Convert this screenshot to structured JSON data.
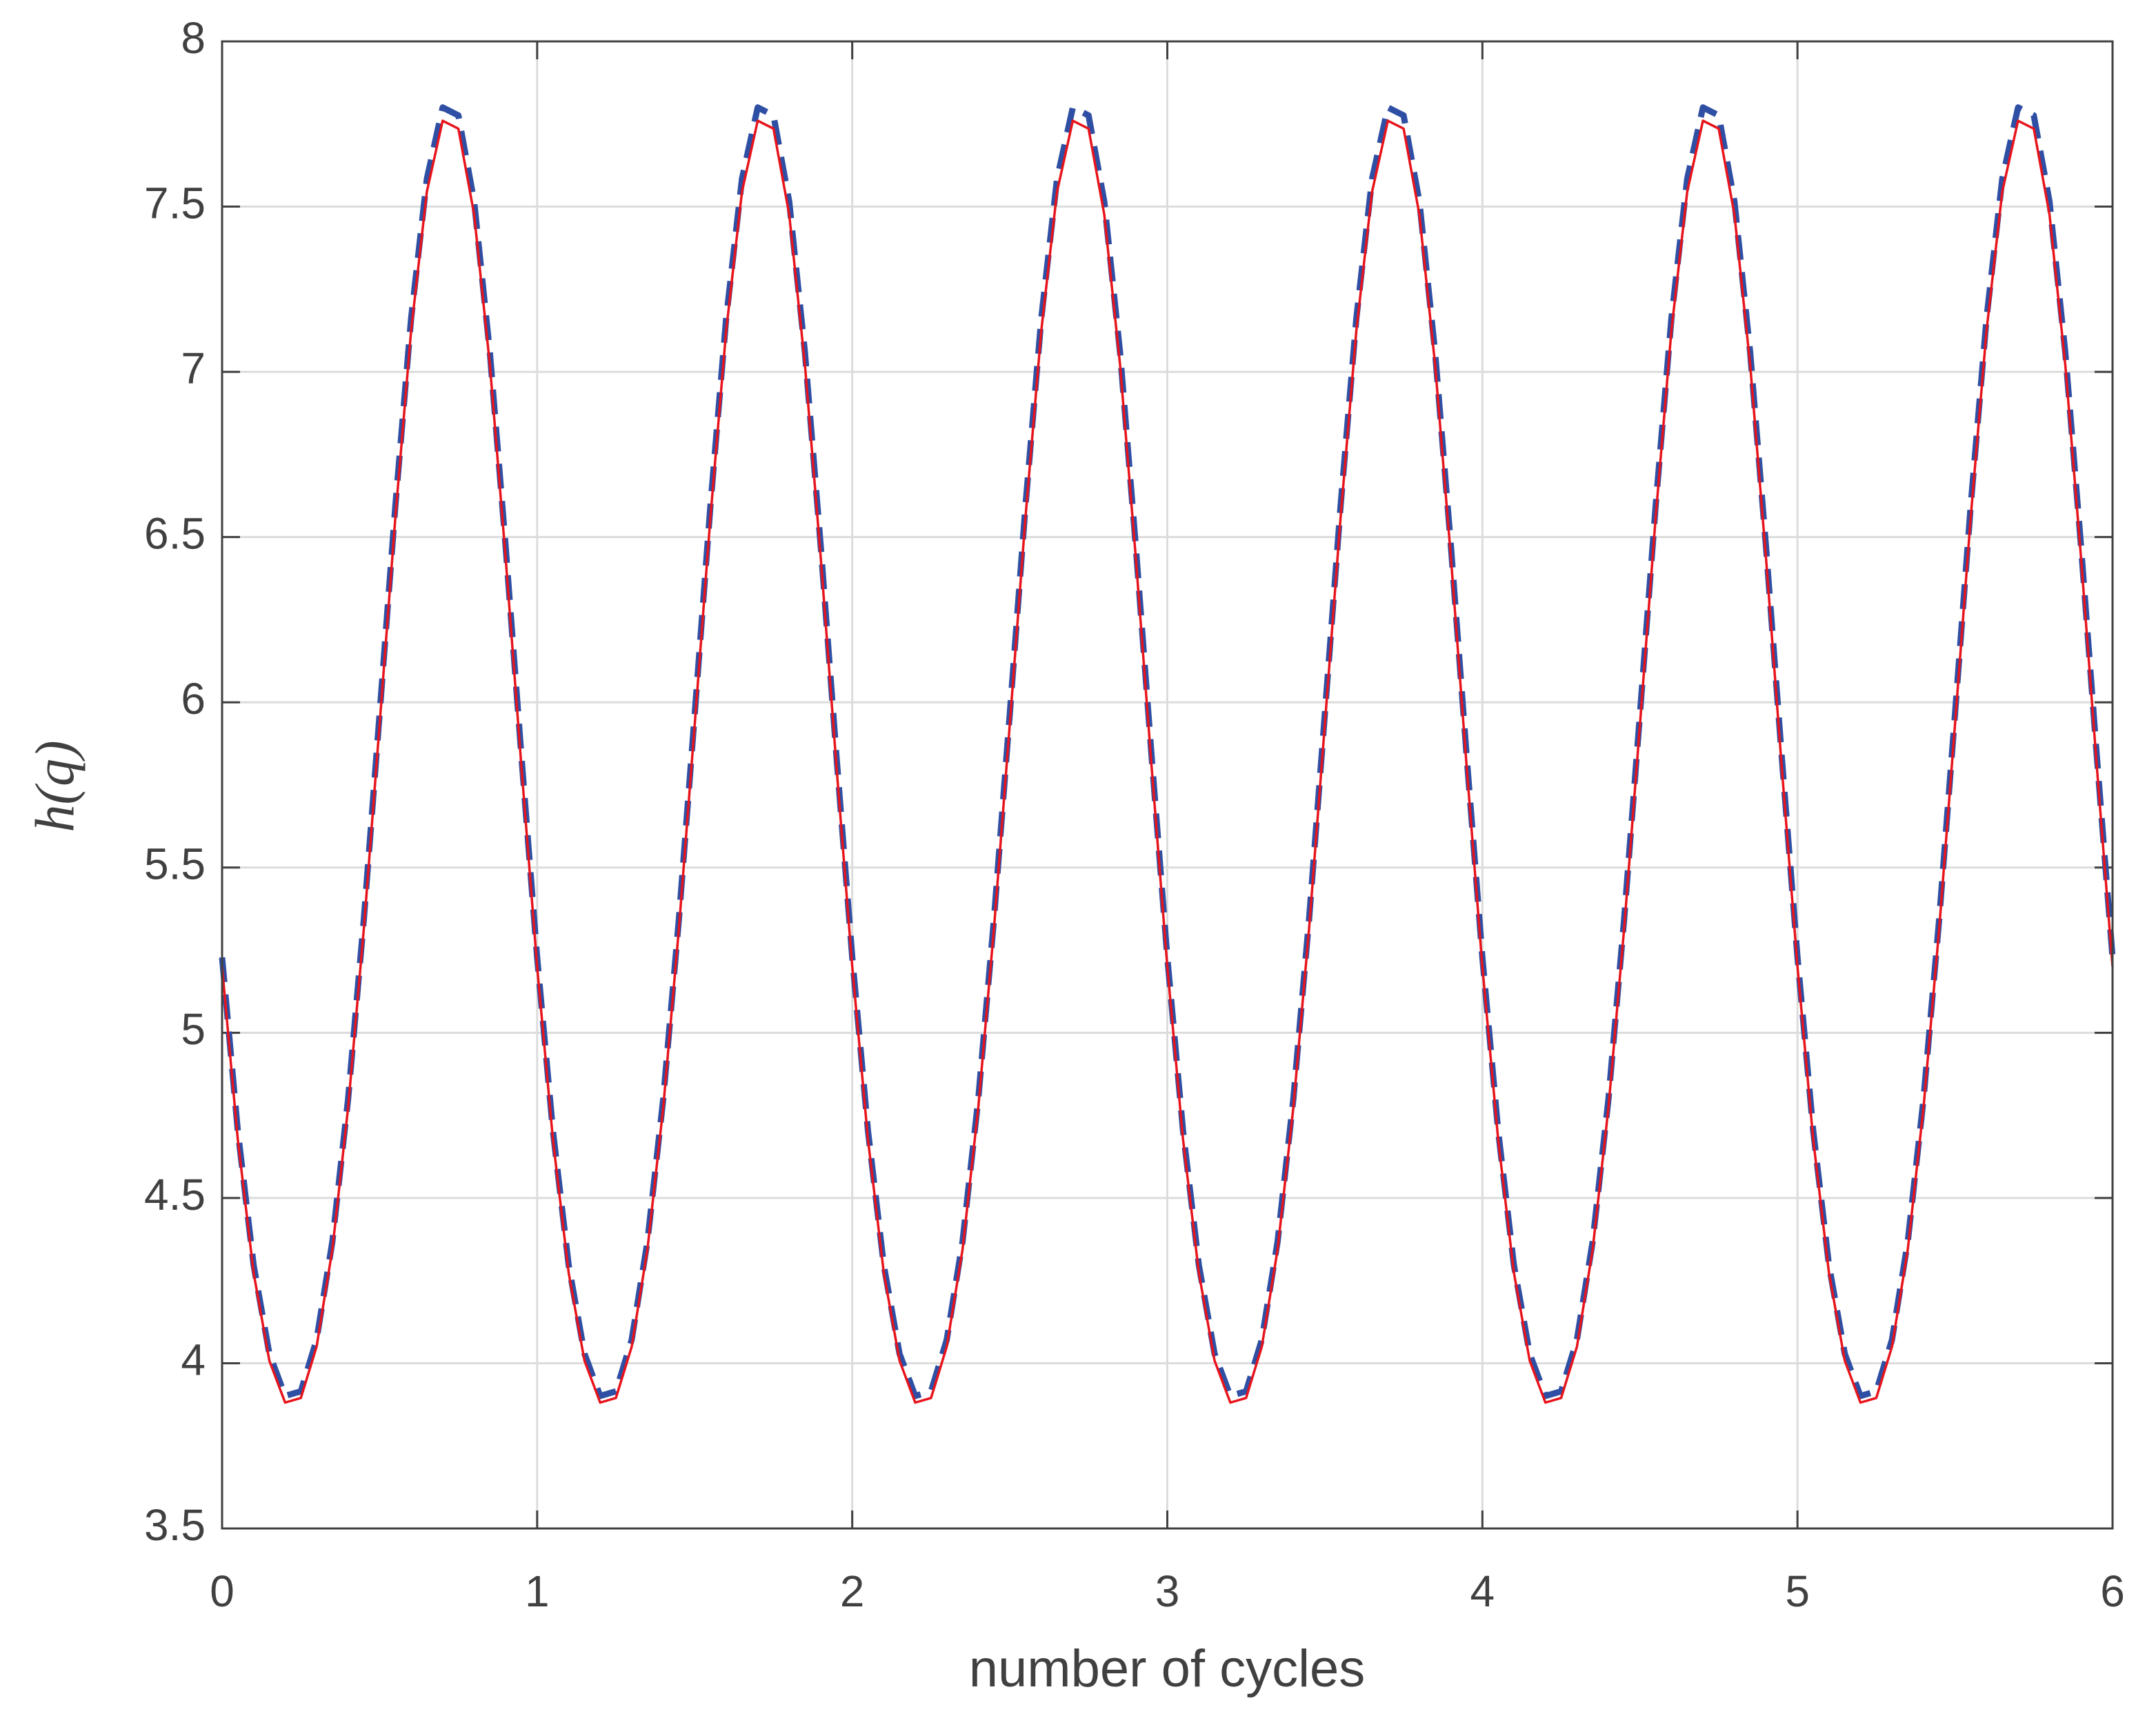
{
  "chart_data": {
    "type": "line",
    "xlabel": "number of cycles",
    "ylabel": "h(q)",
    "xlim": [
      0,
      6
    ],
    "xticks": [
      0,
      1,
      2,
      3,
      4,
      5,
      6
    ],
    "ylim": [
      3.5,
      8
    ],
    "yticks": [
      3.5,
      4,
      4.5,
      5,
      5.5,
      6,
      6.5,
      7,
      7.5,
      8
    ],
    "grid": true,
    "x": [
      0,
      0.05,
      0.1,
      0.15,
      0.2,
      0.25,
      0.3,
      0.35,
      0.4,
      0.45,
      0.5,
      0.55,
      0.6,
      0.65,
      0.7,
      0.75,
      0.8,
      0.85,
      0.9,
      0.95,
      1,
      1.05,
      1.1,
      1.15,
      1.2,
      1.25,
      1.3,
      1.35,
      1.4,
      1.45,
      1.5,
      1.55,
      1.6,
      1.65,
      1.7,
      1.75,
      1.8,
      1.85,
      1.9,
      1.95,
      2,
      2.05,
      2.1,
      2.15,
      2.2,
      2.25,
      2.3,
      2.35,
      2.4,
      2.45,
      2.5,
      2.55,
      2.6,
      2.65,
      2.7,
      2.75,
      2.8,
      2.85,
      2.9,
      2.95,
      3,
      3.05,
      3.1,
      3.15,
      3.2,
      3.25,
      3.3,
      3.35,
      3.4,
      3.45,
      3.5,
      3.55,
      3.6,
      3.65,
      3.7,
      3.75,
      3.8,
      3.85,
      3.9,
      3.95,
      4,
      4.05,
      4.1,
      4.15,
      4.2,
      4.25,
      4.3,
      4.35,
      4.4,
      4.45,
      4.5,
      4.55,
      4.6,
      4.65,
      4.7,
      4.75,
      4.8,
      4.85,
      4.9,
      4.95,
      5,
      5.05,
      5.1,
      5.15,
      5.2,
      5.25,
      5.3,
      5.35,
      5.4,
      5.45,
      5.5,
      5.55,
      5.6,
      5.65,
      5.7,
      5.75,
      5.8,
      5.85,
      5.9,
      5.95,
      6
    ],
    "series": [
      {
        "color": "#2e4fa3",
        "dash": true,
        "values": [
          5.228,
          4.703,
          4.297,
          4.029,
          3.901,
          3.915,
          4.071,
          4.368,
          4.799,
          5.345,
          5.965,
          6.596,
          7.162,
          7.584,
          7.8,
          7.776,
          7.515,
          7.058,
          6.472,
          5.837,
          5.228,
          4.703,
          4.297,
          4.029,
          3.901,
          3.915,
          4.071,
          4.368,
          4.799,
          5.345,
          5.965,
          6.596,
          7.162,
          7.584,
          7.8,
          7.776,
          7.515,
          7.058,
          6.472,
          5.837,
          5.228,
          4.703,
          4.297,
          4.029,
          3.901,
          3.915,
          4.071,
          4.368,
          4.799,
          5.345,
          5.965,
          6.596,
          7.162,
          7.584,
          7.8,
          7.776,
          7.515,
          7.058,
          6.472,
          5.837,
          5.228,
          4.703,
          4.297,
          4.029,
          3.901,
          3.915,
          4.071,
          4.368,
          4.799,
          5.345,
          5.965,
          6.596,
          7.162,
          7.584,
          7.8,
          7.776,
          7.515,
          7.058,
          6.472,
          5.837,
          5.228,
          4.703,
          4.297,
          4.029,
          3.901,
          3.915,
          4.071,
          4.368,
          4.799,
          5.345,
          5.965,
          6.596,
          7.162,
          7.584,
          7.8,
          7.776,
          7.515,
          7.058,
          6.472,
          5.837,
          5.228,
          4.703,
          4.297,
          4.029,
          3.901,
          3.915,
          4.071,
          4.368,
          4.799,
          5.345,
          5.965,
          6.596,
          7.162,
          7.584,
          7.8,
          7.776,
          7.515,
          7.058,
          6.472,
          5.837,
          5.228
        ]
      },
      {
        "color": "#e8141c",
        "dash": false,
        "values": [
          5.2,
          4.677,
          4.274,
          4.008,
          3.881,
          3.895,
          4.05,
          4.344,
          4.773,
          5.316,
          5.933,
          6.561,
          7.125,
          7.545,
          7.76,
          7.736,
          7.476,
          7.021,
          6.438,
          5.806,
          5.2,
          4.677,
          4.274,
          4.008,
          3.881,
          3.895,
          4.05,
          4.344,
          4.773,
          5.316,
          5.933,
          6.561,
          7.125,
          7.545,
          7.76,
          7.736,
          7.476,
          7.021,
          6.438,
          5.806,
          5.2,
          4.677,
          4.274,
          4.008,
          3.881,
          3.895,
          4.05,
          4.344,
          4.773,
          5.316,
          5.933,
          6.561,
          7.125,
          7.545,
          7.76,
          7.736,
          7.476,
          7.021,
          6.438,
          5.806,
          5.2,
          4.677,
          4.274,
          4.008,
          3.881,
          3.895,
          4.05,
          4.344,
          4.773,
          5.316,
          5.933,
          6.561,
          7.125,
          7.545,
          7.76,
          7.736,
          7.476,
          7.021,
          6.438,
          5.806,
          5.2,
          4.677,
          4.274,
          4.008,
          3.881,
          3.895,
          4.05,
          4.344,
          4.773,
          5.316,
          5.933,
          6.561,
          7.125,
          7.545,
          7.76,
          7.736,
          7.476,
          7.021,
          6.438,
          5.806,
          5.2,
          4.677,
          4.274,
          4.008,
          3.881,
          3.895,
          4.05,
          4.344,
          4.773,
          5.316,
          5.933,
          6.561,
          7.125,
          7.545,
          7.76,
          7.736,
          7.476,
          7.021,
          6.438,
          5.806,
          5.2
        ]
      }
    ]
  }
}
